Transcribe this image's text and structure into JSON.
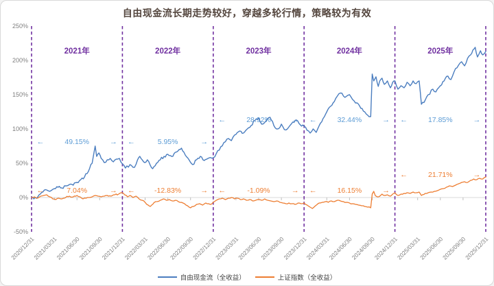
{
  "title": "自由现金流长期走势较好，穿越多轮行情，策略较为有效",
  "colors": {
    "series1": "#4a7dbf",
    "series1_text": "#5b9bd5",
    "series2": "#ed7d31",
    "divider": "#7030a0",
    "year_label": "#7030a0",
    "axis_text": "#808080",
    "axis_line": "#d9d9d9",
    "tick_line": "#bfbfbf",
    "title_text": "#55473f"
  },
  "chart_data": {
    "type": "line",
    "title": "自由现金流长期走势较好，穿越多轮行情，策略较为有效",
    "xlabel": "",
    "ylabel": "",
    "ylim": [
      -50,
      250
    ],
    "grid": false,
    "legend_position": "bottom-center",
    "yticks": [
      250,
      200,
      150,
      100,
      50,
      0,
      -50
    ],
    "ytick_suffix": "%",
    "x_tick_labels": [
      "2020/12/31",
      "2021/03/31",
      "2021/06/30",
      "2021/09/30",
      "2021/12/31",
      "2022/03/31",
      "2022/06/30",
      "2022/09/30",
      "2022/12/31",
      "2023/03/31",
      "2023/06/30",
      "2023/09/30",
      "2023/12/31",
      "2024/03/31",
      "2024/06/30",
      "2024/09/30",
      "2024/12/31",
      "2025/03/31",
      "2025/06/30",
      "2025/09/30",
      "2025/12/31"
    ],
    "x_unit": "months since 2020/12/31",
    "annotation_arrows": {
      "left": "←",
      "right": "→"
    },
    "year_sections": [
      {
        "label": "2021年",
        "series1_return": "49.15%",
        "series2_return": "7.04%"
      },
      {
        "label": "2022年",
        "series1_return": "5.95%",
        "series2_return": "-12.83%"
      },
      {
        "label": "2023年",
        "series1_return": "28.92%",
        "series2_return": "-1.09%"
      },
      {
        "label": "2024年",
        "series1_return": "32.44%",
        "series2_return": "16.15%"
      },
      {
        "label": "2025年",
        "series1_return": "17.85%",
        "series2_return": "21.71%"
      }
    ],
    "series": [
      {
        "name": "自由现金流（全收益）",
        "color": "#4a7dbf",
        "points": [
          [
            0,
            0
          ],
          [
            0.3,
            -2
          ],
          [
            1,
            4
          ],
          [
            1.5,
            8
          ],
          [
            2,
            11
          ],
          [
            2.4,
            9
          ],
          [
            3,
            13
          ],
          [
            3.5,
            15
          ],
          [
            4,
            14
          ],
          [
            4.5,
            17
          ],
          [
            5,
            19
          ],
          [
            5.5,
            18
          ],
          [
            6,
            22
          ],
          [
            6.5,
            26
          ],
          [
            7,
            30
          ],
          [
            7.5,
            38
          ],
          [
            8,
            50
          ],
          [
            8.4,
            75
          ],
          [
            8.6,
            60
          ],
          [
            8.9,
            65
          ],
          [
            9.2,
            57
          ],
          [
            9.6,
            51
          ],
          [
            10,
            55
          ],
          [
            10.4,
            57
          ],
          [
            10.8,
            52
          ],
          [
            11.2,
            56
          ],
          [
            11.6,
            57
          ],
          [
            12,
            49
          ],
          [
            12.4,
            43
          ],
          [
            13,
            48
          ],
          [
            13.6,
            44
          ],
          [
            14,
            55
          ],
          [
            14.3,
            60
          ],
          [
            14.8,
            52
          ],
          [
            15.3,
            55
          ],
          [
            16,
            42
          ],
          [
            16.5,
            50
          ],
          [
            17,
            55
          ],
          [
            17.5,
            60
          ],
          [
            18,
            63
          ],
          [
            18.5,
            60
          ],
          [
            19,
            66
          ],
          [
            19.5,
            70
          ],
          [
            19.8,
            72
          ],
          [
            20.3,
            62
          ],
          [
            20.8,
            55
          ],
          [
            21.3,
            48
          ],
          [
            21.8,
            55
          ],
          [
            22.3,
            60
          ],
          [
            22.8,
            54
          ],
          [
            23.3,
            57
          ],
          [
            24,
            58
          ],
          [
            24.4,
            64
          ],
          [
            25,
            74
          ],
          [
            25.4,
            80
          ],
          [
            26,
            86
          ],
          [
            26.4,
            83
          ],
          [
            27,
            92
          ],
          [
            27.5,
            97
          ],
          [
            28,
            94
          ],
          [
            28.5,
            100
          ],
          [
            29,
            105
          ],
          [
            29.5,
            112
          ],
          [
            30,
            116
          ],
          [
            30.4,
            107
          ],
          [
            31,
            112
          ],
          [
            31.5,
            117
          ],
          [
            32,
            105
          ],
          [
            32.5,
            100
          ],
          [
            33,
            107
          ],
          [
            33.4,
            99
          ],
          [
            34,
            103
          ],
          [
            34.5,
            110
          ],
          [
            35,
            113
          ],
          [
            35.5,
            106
          ],
          [
            36,
            104
          ],
          [
            36.4,
            98
          ],
          [
            36.8,
            94
          ],
          [
            37.2,
            100
          ],
          [
            37.6,
            95
          ],
          [
            38,
            105
          ],
          [
            38.5,
            115
          ],
          [
            39,
            125
          ],
          [
            39.5,
            133
          ],
          [
            40,
            140
          ],
          [
            40.4,
            148
          ],
          [
            41,
            152
          ],
          [
            41.4,
            146
          ],
          [
            42,
            150
          ],
          [
            42.4,
            143
          ],
          [
            43,
            138
          ],
          [
            43.5,
            130
          ],
          [
            44,
            125
          ],
          [
            44.4,
            120
          ],
          [
            44.8,
            118
          ],
          [
            45,
            180
          ],
          [
            45.2,
            170
          ],
          [
            45.5,
            176
          ],
          [
            45.8,
            162
          ],
          [
            46,
            170
          ],
          [
            46.3,
            174
          ],
          [
            46.6,
            165
          ],
          [
            47,
            170
          ],
          [
            47.4,
            160
          ],
          [
            47.7,
            168
          ],
          [
            48,
            170
          ],
          [
            48.4,
            158
          ],
          [
            48.8,
            163
          ],
          [
            49.2,
            160
          ],
          [
            49.6,
            168
          ],
          [
            50,
            163
          ],
          [
            50.4,
            170
          ],
          [
            50.8,
            166
          ],
          [
            51.2,
            170
          ],
          [
            51.5,
            136
          ],
          [
            52,
            142
          ],
          [
            52.4,
            150
          ],
          [
            53,
            158
          ],
          [
            53.4,
            154
          ],
          [
            54,
            163
          ],
          [
            54.5,
            170
          ],
          [
            55,
            177
          ],
          [
            55.4,
            172
          ],
          [
            56,
            188
          ],
          [
            56.4,
            193
          ],
          [
            56.8,
            198
          ],
          [
            57.2,
            192
          ],
          [
            57.6,
            203
          ],
          [
            58,
            208
          ],
          [
            58.3,
            215
          ],
          [
            58.6,
            219
          ],
          [
            58.9,
            205
          ],
          [
            59.3,
            214
          ],
          [
            59.6,
            208
          ],
          [
            60,
            213
          ]
        ]
      },
      {
        "name": "上证指数（全收益）",
        "color": "#ed7d31",
        "points": [
          [
            0,
            0
          ],
          [
            0.4,
            1
          ],
          [
            0.8,
            -1
          ],
          [
            1.2,
            2
          ],
          [
            1.6,
            3
          ],
          [
            2,
            4
          ],
          [
            2.4,
            1
          ],
          [
            2.8,
            -2
          ],
          [
            3.2,
            -3
          ],
          [
            3.6,
            -1
          ],
          [
            4,
            -2
          ],
          [
            4.5,
            0
          ],
          [
            5,
            2
          ],
          [
            5.5,
            1
          ],
          [
            6,
            3
          ],
          [
            6.4,
            1
          ],
          [
            6.8,
            -2
          ],
          [
            7.2,
            -1
          ],
          [
            7.6,
            0
          ],
          [
            8,
            1
          ],
          [
            8.4,
            3
          ],
          [
            8.8,
            2
          ],
          [
            9.2,
            1
          ],
          [
            9.6,
            2
          ],
          [
            10,
            3
          ],
          [
            10.5,
            2
          ],
          [
            11,
            4
          ],
          [
            11.5,
            5
          ],
          [
            12,
            7
          ],
          [
            12.3,
            4
          ],
          [
            12.7,
            1
          ],
          [
            13,
            3
          ],
          [
            13.4,
            0
          ],
          [
            13.8,
            2
          ],
          [
            14.2,
            -2
          ],
          [
            14.6,
            -4
          ],
          [
            15,
            -7
          ],
          [
            15.4,
            -11
          ],
          [
            15.7,
            -13
          ],
          [
            16,
            -10
          ],
          [
            16.4,
            -6
          ],
          [
            17,
            -4
          ],
          [
            17.4,
            -2
          ],
          [
            17.8,
            -4
          ],
          [
            18.2,
            -3
          ],
          [
            18.6,
            -5
          ],
          [
            19,
            -4
          ],
          [
            19.4,
            -6
          ],
          [
            19.8,
            -7
          ],
          [
            20.2,
            -9
          ],
          [
            20.6,
            -12
          ],
          [
            21,
            -15
          ],
          [
            21.4,
            -13
          ],
          [
            21.8,
            -10
          ],
          [
            22.2,
            -9
          ],
          [
            22.6,
            -11
          ],
          [
            23,
            -8
          ],
          [
            23.4,
            -9
          ],
          [
            23.7,
            -10
          ],
          [
            24,
            -7
          ],
          [
            24.4,
            -4
          ],
          [
            24.8,
            -2
          ],
          [
            25.2,
            -1
          ],
          [
            25.6,
            -3
          ],
          [
            26,
            -1
          ],
          [
            26.4,
            0
          ],
          [
            26.8,
            -2
          ],
          [
            27.2,
            -1
          ],
          [
            27.6,
            -3
          ],
          [
            28,
            -2
          ],
          [
            28.4,
            -4
          ],
          [
            28.8,
            -3
          ],
          [
            29.2,
            -5
          ],
          [
            29.6,
            -4
          ],
          [
            30,
            -3
          ],
          [
            30.4,
            -4
          ],
          [
            30.8,
            -2
          ],
          [
            31.2,
            -4
          ],
          [
            31.6,
            -5
          ],
          [
            32,
            -6
          ],
          [
            32.4,
            -5
          ],
          [
            32.8,
            -7
          ],
          [
            33.2,
            -8
          ],
          [
            33.6,
            -9
          ],
          [
            34,
            -8
          ],
          [
            34.4,
            -9
          ],
          [
            34.8,
            -10
          ],
          [
            35.2,
            -8
          ],
          [
            35.6,
            -9
          ],
          [
            36,
            -8
          ],
          [
            36.4,
            -11
          ],
          [
            36.8,
            -14
          ],
          [
            37.1,
            -16
          ],
          [
            37.5,
            -12
          ],
          [
            38,
            -8
          ],
          [
            38.4,
            -7
          ],
          [
            38.8,
            -6
          ],
          [
            39.2,
            -7
          ],
          [
            39.6,
            -5
          ],
          [
            40,
            -6
          ],
          [
            40.4,
            -4
          ],
          [
            40.8,
            -5
          ],
          [
            41.2,
            -6
          ],
          [
            41.6,
            -7
          ],
          [
            42,
            -8
          ],
          [
            42.4,
            -9
          ],
          [
            42.8,
            -10
          ],
          [
            43.2,
            -11
          ],
          [
            43.6,
            -12
          ],
          [
            44,
            -13
          ],
          [
            44.4,
            -14
          ],
          [
            44.8,
            -15
          ],
          [
            45,
            5
          ],
          [
            45.2,
            9
          ],
          [
            45.4,
            3
          ],
          [
            45.7,
            1
          ],
          [
            46,
            2
          ],
          [
            46.3,
            5
          ],
          [
            46.6,
            3
          ],
          [
            47,
            4
          ],
          [
            47.4,
            2
          ],
          [
            47.7,
            5
          ],
          [
            48,
            7
          ],
          [
            48.4,
            3
          ],
          [
            48.8,
            5
          ],
          [
            49.2,
            6
          ],
          [
            49.6,
            7
          ],
          [
            50,
            6
          ],
          [
            50.4,
            8
          ],
          [
            50.8,
            7
          ],
          [
            51.2,
            8
          ],
          [
            51.5,
            3
          ],
          [
            52,
            6
          ],
          [
            52.4,
            7
          ],
          [
            52.8,
            8
          ],
          [
            53.2,
            9
          ],
          [
            53.6,
            10
          ],
          [
            54,
            12
          ],
          [
            54.4,
            13
          ],
          [
            54.8,
            15
          ],
          [
            55.2,
            17
          ],
          [
            55.6,
            16
          ],
          [
            56,
            18
          ],
          [
            56.4,
            20
          ],
          [
            56.8,
            22
          ],
          [
            57.2,
            23
          ],
          [
            57.6,
            22
          ],
          [
            58,
            25
          ],
          [
            58.4,
            27
          ],
          [
            58.8,
            26
          ],
          [
            59.2,
            28
          ],
          [
            59.6,
            27
          ],
          [
            60,
            30
          ]
        ]
      }
    ],
    "legend": [
      "自由现金流（全收益）",
      "上证指数（全收益）"
    ]
  }
}
